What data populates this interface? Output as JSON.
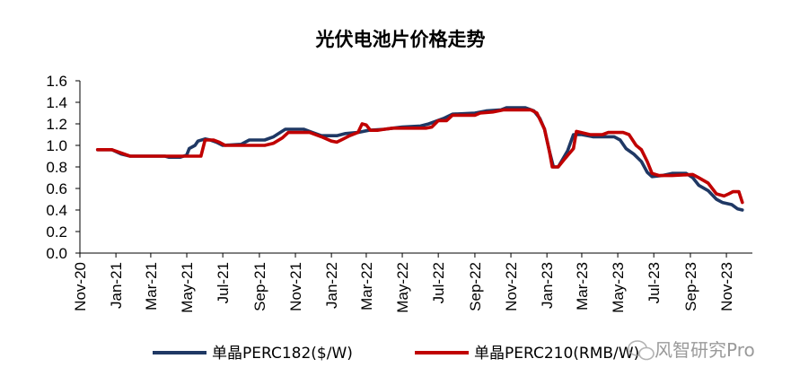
{
  "chart_data": {
    "type": "line",
    "title": "光伏电池片价格走势",
    "xlabel": "",
    "ylabel": "",
    "ylim": [
      0,
      1.6
    ],
    "yticks": [
      0.0,
      0.2,
      0.4,
      0.6,
      0.8,
      1.0,
      1.2,
      1.4,
      1.6
    ],
    "ytick_labels": [
      "0.0",
      "0.2",
      "0.4",
      "0.6",
      "0.8",
      "1.0",
      "1.2",
      "1.4",
      "1.6"
    ],
    "xlim": [
      "2020-11-01",
      "2023-12-15"
    ],
    "xticks": [
      "2020-11-01",
      "2021-01-01",
      "2021-03-01",
      "2021-05-01",
      "2021-07-01",
      "2021-09-01",
      "2021-11-01",
      "2022-01-01",
      "2022-03-01",
      "2022-05-01",
      "2022-07-01",
      "2022-09-01",
      "2022-11-01",
      "2023-01-01",
      "2023-03-01",
      "2023-05-01",
      "2023-07-01",
      "2023-09-01",
      "2023-11-01"
    ],
    "xtick_labels": [
      "Nov-20",
      "Jan-21",
      "Mar-21",
      "May-21",
      "Jul-21",
      "Sep-21",
      "Nov-21",
      "Jan-22",
      "Mar-22",
      "May-22",
      "Jul-22",
      "Sep-22",
      "Nov-22",
      "Jan-23",
      "Mar-23",
      "May-23",
      "Jul-23",
      "Sep-23",
      "Nov-23"
    ],
    "grid": false,
    "legend_position": "bottom",
    "series": [
      {
        "name": "单晶PERC182($/W)",
        "color": "#1f3864",
        "points": [
          [
            "2020-12-01",
            0.96
          ],
          [
            "2020-12-25",
            0.96
          ],
          [
            "2021-01-10",
            0.92
          ],
          [
            "2021-01-25",
            0.9
          ],
          [
            "2021-03-01",
            0.9
          ],
          [
            "2021-03-25",
            0.9
          ],
          [
            "2021-04-01",
            0.89
          ],
          [
            "2021-04-20",
            0.89
          ],
          [
            "2021-05-01",
            0.91
          ],
          [
            "2021-05-05",
            0.97
          ],
          [
            "2021-05-15",
            1.0
          ],
          [
            "2021-05-20",
            1.04
          ],
          [
            "2021-06-01",
            1.06
          ],
          [
            "2021-06-10",
            1.05
          ],
          [
            "2021-06-20",
            1.03
          ],
          [
            "2021-07-01",
            1.0
          ],
          [
            "2021-08-01",
            1.01
          ],
          [
            "2021-08-15",
            1.05
          ],
          [
            "2021-09-10",
            1.05
          ],
          [
            "2021-09-25",
            1.08
          ],
          [
            "2021-10-15",
            1.15
          ],
          [
            "2021-11-15",
            1.15
          ],
          [
            "2021-11-25",
            1.13
          ],
          [
            "2021-12-15",
            1.09
          ],
          [
            "2022-01-10",
            1.09
          ],
          [
            "2022-01-25",
            1.11
          ],
          [
            "2022-02-15",
            1.12
          ],
          [
            "2022-03-05",
            1.14
          ],
          [
            "2022-04-01",
            1.15
          ],
          [
            "2022-04-15",
            1.16
          ],
          [
            "2022-05-01",
            1.17
          ],
          [
            "2022-06-01",
            1.18
          ],
          [
            "2022-06-15",
            1.2
          ],
          [
            "2022-07-10",
            1.25
          ],
          [
            "2022-07-25",
            1.29
          ],
          [
            "2022-09-01",
            1.3
          ],
          [
            "2022-09-20",
            1.32
          ],
          [
            "2022-10-15",
            1.33
          ],
          [
            "2022-10-25",
            1.35
          ],
          [
            "2022-11-25",
            1.35
          ],
          [
            "2022-12-10",
            1.32
          ],
          [
            "2022-12-20",
            1.25
          ],
          [
            "2022-12-28",
            1.15
          ],
          [
            "2023-01-05",
            0.95
          ],
          [
            "2023-01-12",
            0.8
          ],
          [
            "2023-01-20",
            0.8
          ],
          [
            "2023-02-05",
            0.95
          ],
          [
            "2023-02-15",
            1.1
          ],
          [
            "2023-03-01",
            1.1
          ],
          [
            "2023-03-20",
            1.08
          ],
          [
            "2023-04-25",
            1.08
          ],
          [
            "2023-05-05",
            1.05
          ],
          [
            "2023-05-15",
            0.97
          ],
          [
            "2023-05-28",
            0.92
          ],
          [
            "2023-06-10",
            0.85
          ],
          [
            "2023-06-20",
            0.75
          ],
          [
            "2023-06-28",
            0.71
          ],
          [
            "2023-07-15",
            0.72
          ],
          [
            "2023-08-01",
            0.74
          ],
          [
            "2023-08-25",
            0.74
          ],
          [
            "2023-09-05",
            0.7
          ],
          [
            "2023-09-15",
            0.63
          ],
          [
            "2023-10-01",
            0.58
          ],
          [
            "2023-10-15",
            0.5
          ],
          [
            "2023-10-25",
            0.47
          ],
          [
            "2023-11-10",
            0.45
          ],
          [
            "2023-11-20",
            0.41
          ],
          [
            "2023-11-28",
            0.4
          ]
        ]
      },
      {
        "name": "单晶PERC210(RMB/W)",
        "color": "#c00000",
        "points": [
          [
            "2020-12-01",
            0.96
          ],
          [
            "2020-12-25",
            0.96
          ],
          [
            "2021-01-10",
            0.93
          ],
          [
            "2021-01-25",
            0.9
          ],
          [
            "2021-03-01",
            0.9
          ],
          [
            "2021-04-25",
            0.9
          ],
          [
            "2021-05-01",
            0.9
          ],
          [
            "2021-05-25",
            0.9
          ],
          [
            "2021-06-01",
            1.05
          ],
          [
            "2021-06-15",
            1.05
          ],
          [
            "2021-06-25",
            1.03
          ],
          [
            "2021-07-05",
            1.0
          ],
          [
            "2021-08-20",
            1.0
          ],
          [
            "2021-09-10",
            1.0
          ],
          [
            "2021-09-25",
            1.02
          ],
          [
            "2021-10-10",
            1.07
          ],
          [
            "2021-10-20",
            1.12
          ],
          [
            "2021-11-25",
            1.12
          ],
          [
            "2021-12-15",
            1.08
          ],
          [
            "2022-01-01",
            1.04
          ],
          [
            "2022-01-10",
            1.03
          ],
          [
            "2022-02-01",
            1.09
          ],
          [
            "2022-02-15",
            1.12
          ],
          [
            "2022-02-22",
            1.2
          ],
          [
            "2022-03-01",
            1.19
          ],
          [
            "2022-03-08",
            1.14
          ],
          [
            "2022-03-20",
            1.14
          ],
          [
            "2022-04-01",
            1.15
          ],
          [
            "2022-04-15",
            1.16
          ],
          [
            "2022-06-10",
            1.16
          ],
          [
            "2022-06-20",
            1.17
          ],
          [
            "2022-07-01",
            1.23
          ],
          [
            "2022-07-15",
            1.23
          ],
          [
            "2022-07-25",
            1.28
          ],
          [
            "2022-09-01",
            1.28
          ],
          [
            "2022-09-10",
            1.3
          ],
          [
            "2022-10-01",
            1.31
          ],
          [
            "2022-10-20",
            1.33
          ],
          [
            "2022-11-25",
            1.33
          ],
          [
            "2022-12-05",
            1.33
          ],
          [
            "2022-12-15",
            1.3
          ],
          [
            "2022-12-28",
            1.15
          ],
          [
            "2023-01-05",
            0.95
          ],
          [
            "2023-01-10",
            0.8
          ],
          [
            "2023-01-20",
            0.8
          ],
          [
            "2023-02-01",
            0.88
          ],
          [
            "2023-02-15",
            0.97
          ],
          [
            "2023-02-20",
            1.13
          ],
          [
            "2023-03-15",
            1.1
          ],
          [
            "2023-04-05",
            1.1
          ],
          [
            "2023-04-15",
            1.12
          ],
          [
            "2023-05-10",
            1.12
          ],
          [
            "2023-05-20",
            1.1
          ],
          [
            "2023-06-01",
            1.0
          ],
          [
            "2023-06-10",
            0.96
          ],
          [
            "2023-06-20",
            0.85
          ],
          [
            "2023-06-28",
            0.74
          ],
          [
            "2023-07-10",
            0.72
          ],
          [
            "2023-08-01",
            0.72
          ],
          [
            "2023-09-05",
            0.73
          ],
          [
            "2023-09-15",
            0.7
          ],
          [
            "2023-10-01",
            0.65
          ],
          [
            "2023-10-15",
            0.55
          ],
          [
            "2023-10-28",
            0.53
          ],
          [
            "2023-11-05",
            0.55
          ],
          [
            "2023-11-12",
            0.57
          ],
          [
            "2023-11-22",
            0.57
          ],
          [
            "2023-11-28",
            0.47
          ]
        ]
      }
    ]
  },
  "watermark": {
    "text": "风智研究Pro",
    "icon": "wechat-icon"
  }
}
